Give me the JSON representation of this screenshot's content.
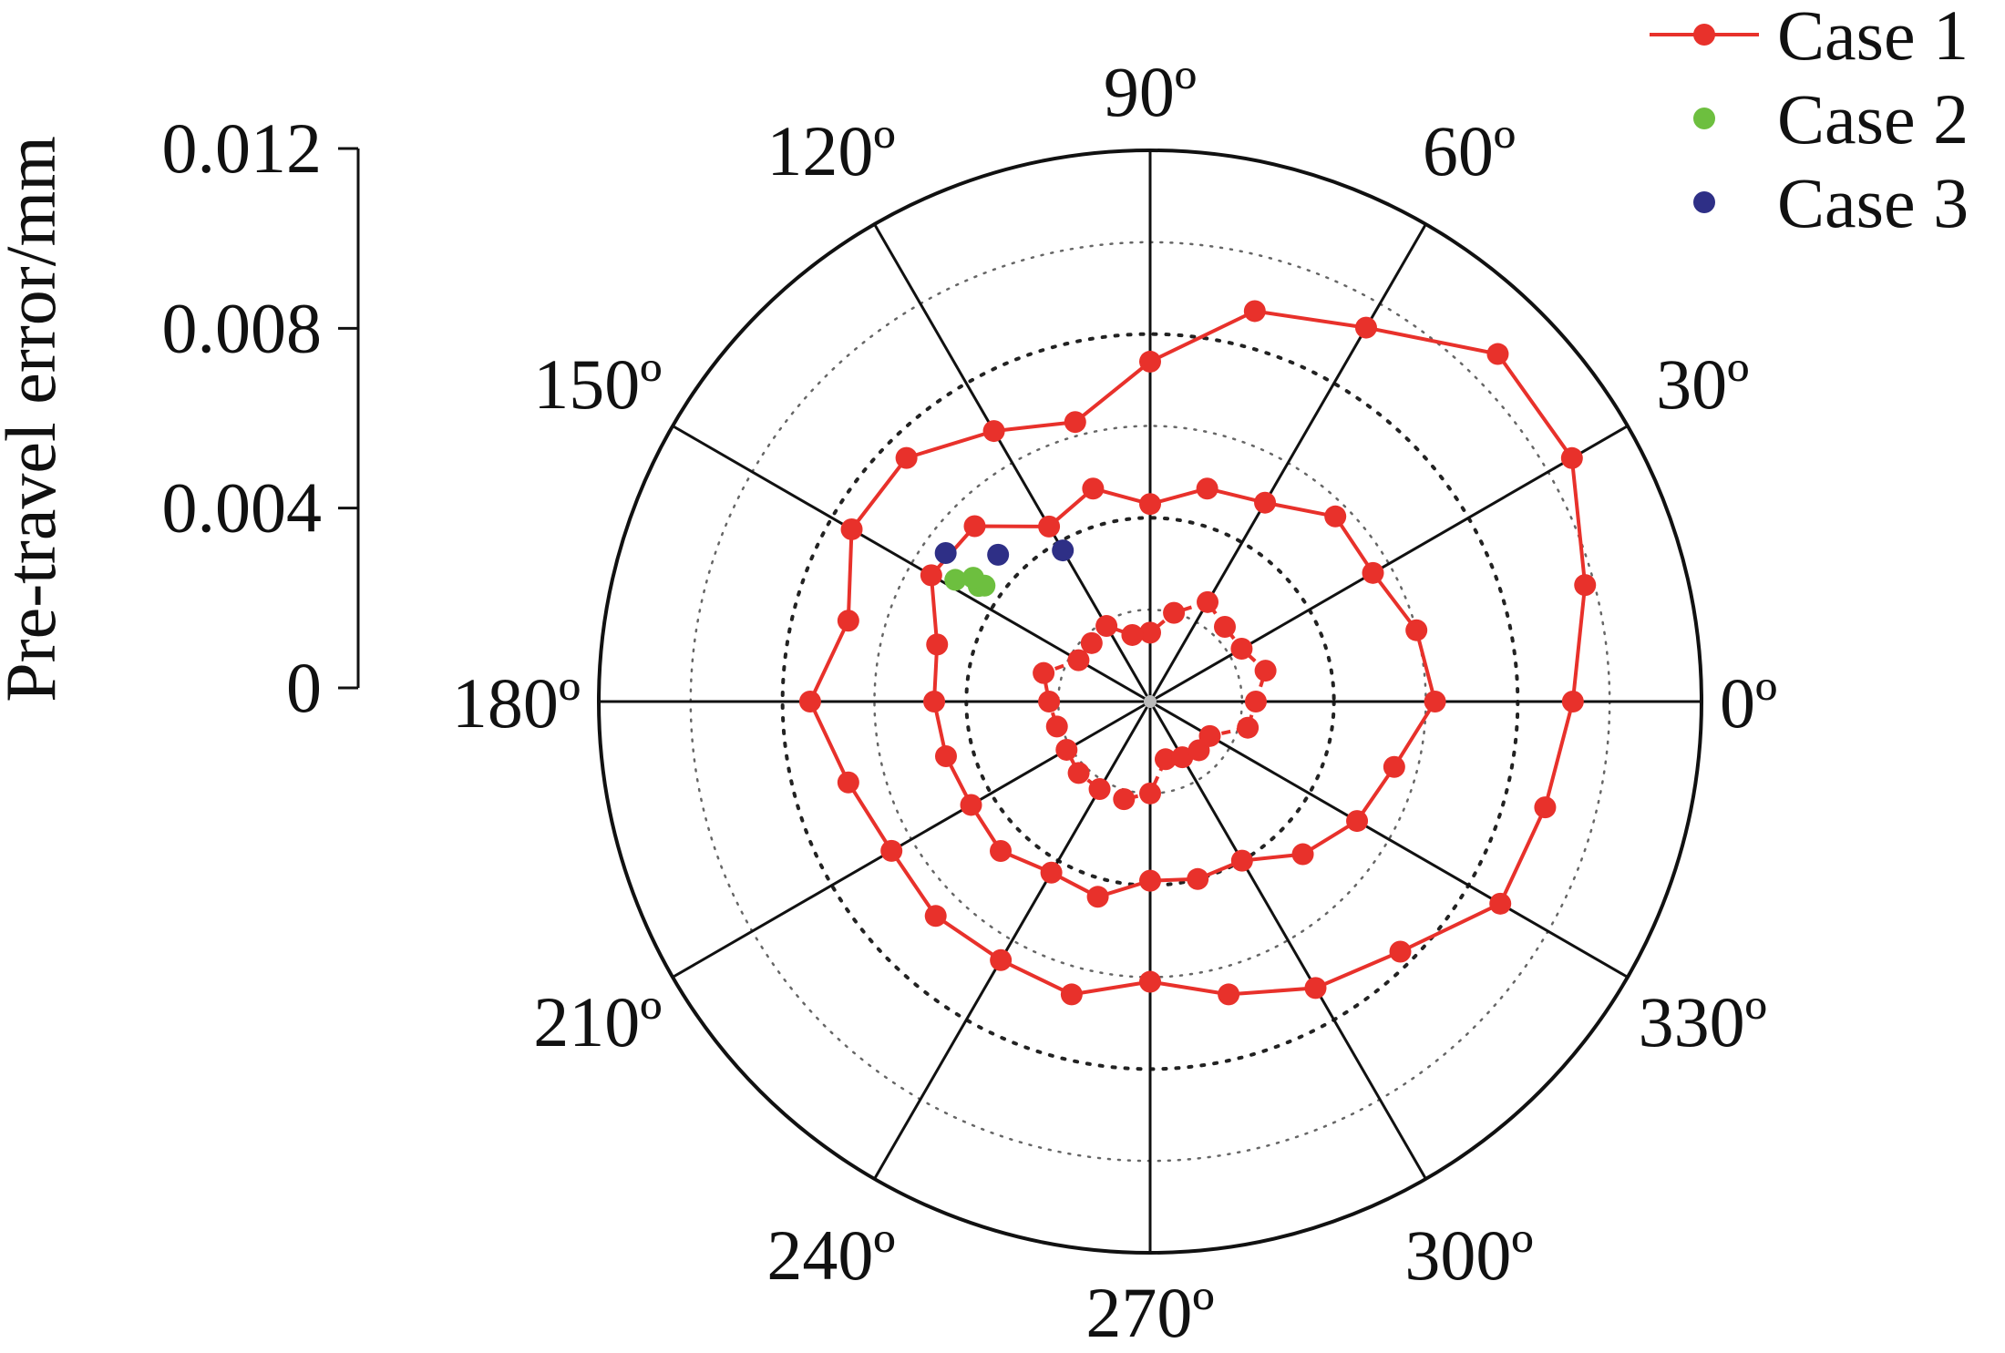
{
  "chart_data": {
    "type": "polar",
    "ylabel": "Pre-travel error/mm",
    "radial_axis": {
      "range": [
        0,
        0.012
      ],
      "tick_values": [
        0,
        0.004,
        0.008,
        0.012
      ],
      "tick_labels": [
        "0",
        "0.004",
        "0.008",
        "0.012"
      ],
      "grid": "dotted circles"
    },
    "angular_axis": {
      "unit": "degrees",
      "tick_values": [
        0,
        30,
        60,
        90,
        120,
        150,
        180,
        210,
        240,
        270,
        300,
        330
      ],
      "tick_labels": [
        "0º",
        "30º",
        "60º",
        "90º",
        "120º",
        "150º",
        "180º",
        "210º",
        "240º",
        "270º",
        "300º",
        "330º"
      ]
    },
    "legend": {
      "position": "top-right",
      "items": [
        "Case 1",
        "Case 2",
        "Case 3"
      ]
    },
    "series": [
      {
        "name": "Case 1",
        "color": "#e8312b",
        "style": "line-markers",
        "closed": true,
        "theta_deg": [
          0,
          15,
          30,
          45,
          60,
          75,
          90,
          105,
          120,
          135,
          150,
          165,
          180,
          195,
          210,
          225,
          240,
          255,
          270,
          285,
          300,
          315,
          330,
          345
        ],
        "r": [
          0.0092,
          0.0098,
          0.0106,
          0.0107,
          0.0094,
          0.0088,
          0.0074,
          0.0063,
          0.0068,
          0.0075,
          0.0075,
          0.0068,
          0.0074,
          0.0068,
          0.0065,
          0.0066,
          0.0065,
          0.0066,
          0.0061,
          0.0066,
          0.0072,
          0.0077,
          0.0088,
          0.0089
        ]
      },
      {
        "name": "Case 1",
        "color": "#e8312b",
        "style": "line-markers",
        "closed": true,
        "theta_deg": [
          0,
          15,
          30,
          45,
          60,
          75,
          90,
          105,
          120,
          135,
          150,
          165,
          180,
          195,
          210,
          225,
          240,
          255,
          270,
          285,
          300,
          315,
          330,
          345
        ],
        "r": [
          0.0062,
          0.006,
          0.0056,
          0.0057,
          0.005,
          0.0048,
          0.0043,
          0.0048,
          0.0044,
          0.0054,
          0.0055,
          0.0048,
          0.0047,
          0.0046,
          0.0045,
          0.0046,
          0.0043,
          0.0044,
          0.0039,
          0.004,
          0.004,
          0.0047,
          0.0052,
          0.0055
        ]
      },
      {
        "name": "Case 1",
        "color": "#e8312b",
        "style": "dashed-line-markers",
        "closed": true,
        "theta_deg": [
          0,
          15,
          30,
          45,
          60,
          75,
          90,
          105,
          120,
          135,
          150,
          165,
          180,
          195,
          210,
          225,
          240,
          255,
          270,
          285,
          300,
          315,
          330,
          345
        ],
        "r": [
          0.0023,
          0.0026,
          0.0023,
          0.0023,
          0.0025,
          0.002,
          0.0015,
          0.0015,
          0.0019,
          0.0018,
          0.0018,
          0.0024,
          0.0022,
          0.0021,
          0.0021,
          0.0022,
          0.0022,
          0.0022,
          0.002,
          0.0013,
          0.0014,
          0.0015,
          0.0015,
          0.0022
        ]
      },
      {
        "name": "Case 2",
        "color": "#6dbf3f",
        "style": "markers",
        "theta_deg": [
          148,
          146,
          145,
          145
        ],
        "r": [
          0.005,
          0.0045,
          0.0044,
          0.0047
        ]
      },
      {
        "name": "Case 3",
        "color": "#2e2f86",
        "style": "markers",
        "theta_deg": [
          144,
          136,
          120
        ],
        "r": [
          0.0055,
          0.0046,
          0.0038
        ]
      }
    ]
  }
}
